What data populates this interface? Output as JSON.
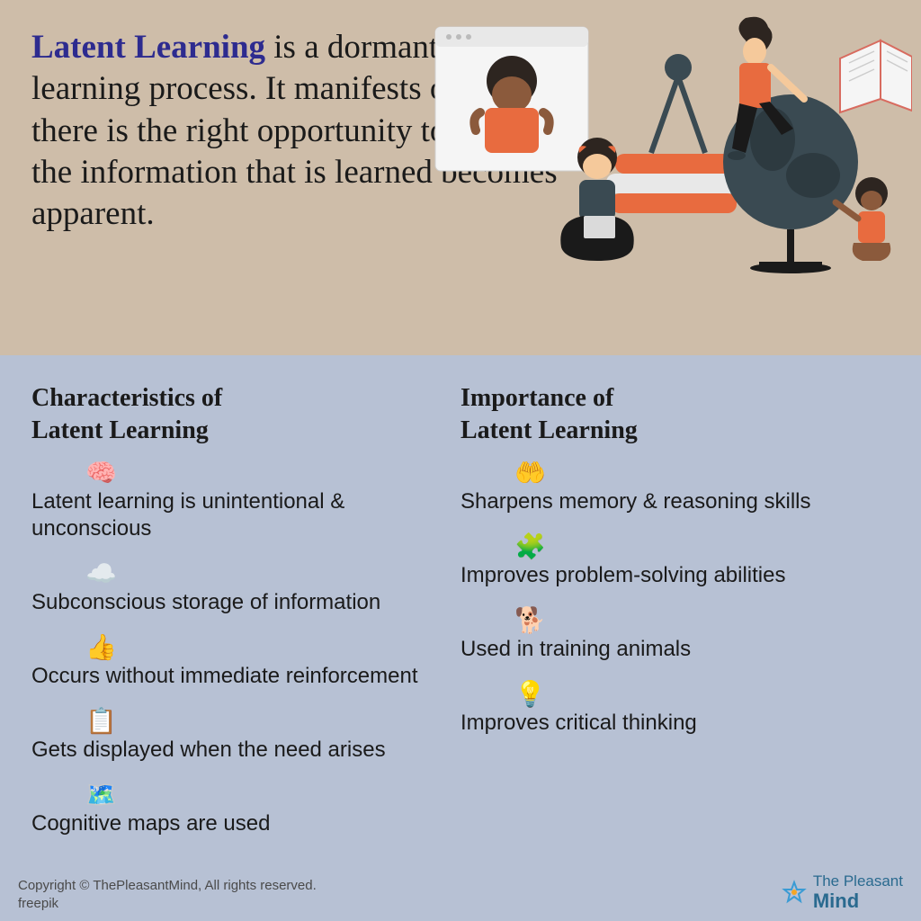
{
  "top": {
    "highlight": "Latent Learning",
    "rest": " is a dormant or hidden learning process.\nIt manifests only when there is the right opportunity to display the information that is learned becomes apparent."
  },
  "colors": {
    "top_bg": "#cebda9",
    "bottom_bg": "#b7c1d4",
    "highlight": "#2d2b8f",
    "text": "#1a1a1a",
    "footer_text": "#4a4a4a",
    "logo_color": "#2a6a8f"
  },
  "left_column": {
    "title_line1": "Characteristics of",
    "title_line2": "Latent Learning",
    "items": [
      {
        "icon": "🧠",
        "text": "Latent learning is unintentional & unconscious"
      },
      {
        "icon": "☁️",
        "text": "Subconscious storage of information"
      },
      {
        "icon": "👍",
        "text": "Occurs without immediate reinforcement"
      },
      {
        "icon": "📋",
        "text": "Gets displayed when the need arises"
      },
      {
        "icon": "🗺️",
        "text": "Cognitive maps are used"
      }
    ]
  },
  "right_column": {
    "title_line1": "Importance of",
    "title_line2": "Latent Learning",
    "items": [
      {
        "icon": "🤲",
        "text": "Sharpens memory & reasoning skills"
      },
      {
        "icon": "🧩",
        "text": "Improves problem-solving abilities"
      },
      {
        "icon": "🐕",
        "text": "Used in training animals"
      },
      {
        "icon": "💡",
        "text": "Improves critical thinking"
      }
    ]
  },
  "footer": {
    "copyright": "Copyright © ThePleasantMind, All rights reserved.",
    "credit": "freepik",
    "logo_line1": "The Pleasant",
    "logo_line2": "Mind"
  }
}
